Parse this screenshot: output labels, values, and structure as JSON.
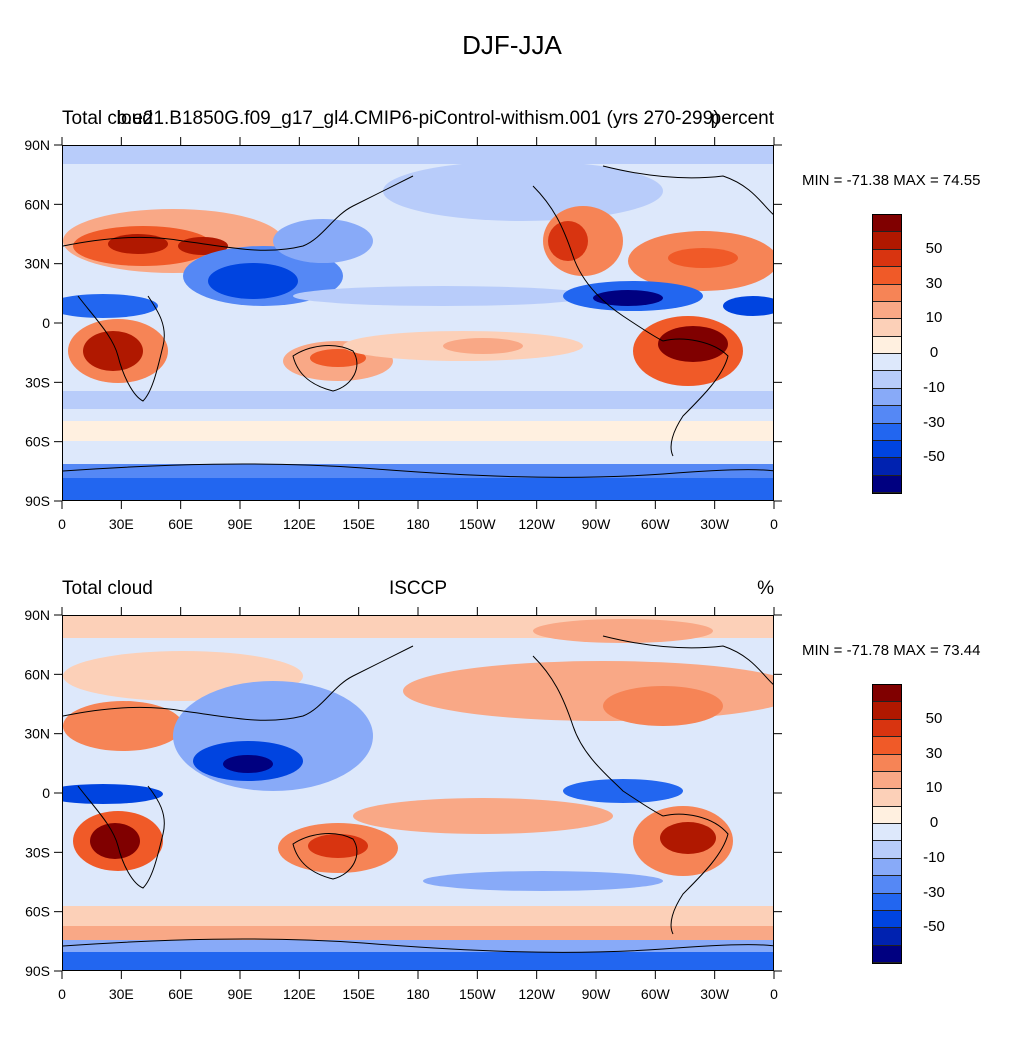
{
  "title": "DJF-JJA",
  "colors": {
    "levels": [
      "#000080",
      "#0022b0",
      "#0044e0",
      "#2266f0",
      "#5588f5",
      "#88aaf8",
      "#b8ccfa",
      "#dde8fb",
      "#fff0e0",
      "#fcd0b8",
      "#f9a886",
      "#f68456",
      "#f05a28",
      "#d83410",
      "#b01800",
      "#800000"
    ]
  },
  "panels": [
    {
      "left_label": "Total cloud",
      "center_label": "b.e21.B1850G.f09_g17_gl4.CMIP6-piControl-withism.001 (yrs 270-299)",
      "right_label": "percent",
      "min_max": "MIN = -71.38 MAX =  74.55",
      "colorbar_labels": [
        "50",
        "30",
        "10",
        "0",
        "-10",
        "-30",
        "-50"
      ]
    },
    {
      "left_label": "Total cloud",
      "center_label": "ISCCP",
      "right_label": "%",
      "min_max": "MIN = -71.78 MAX =  73.44",
      "colorbar_labels": [
        "50",
        "30",
        "10",
        "0",
        "-10",
        "-30",
        "-50"
      ]
    }
  ],
  "axes": {
    "lat_labels": [
      "90N",
      "60N",
      "30N",
      "0",
      "30S",
      "60S",
      "90S"
    ],
    "lon_labels": [
      "0",
      "30E",
      "60E",
      "90E",
      "120E",
      "150E",
      "180",
      "150W",
      "120W",
      "90W",
      "60W",
      "30W",
      "0"
    ]
  }
}
